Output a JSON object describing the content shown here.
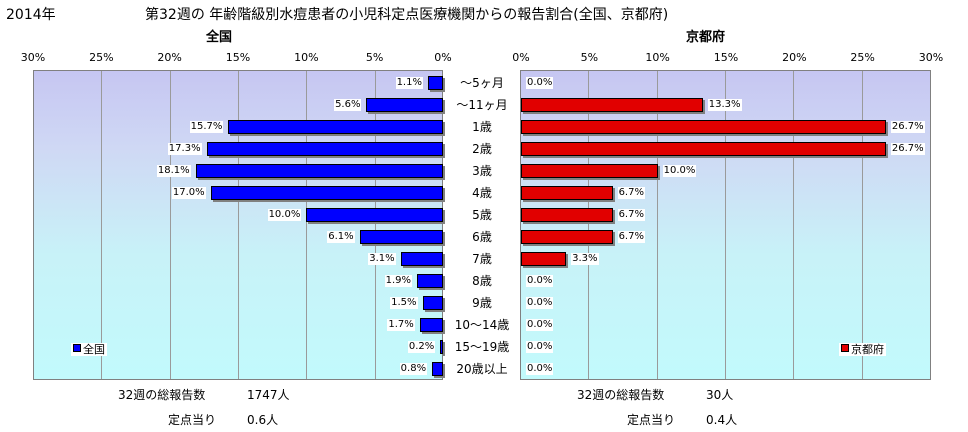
{
  "header": {
    "year": "2014年",
    "title": "第32週の  年齢階級別水痘患者の小児科定点医療機関からの報告割合(全国、京都府)"
  },
  "chart_data": [
    {
      "type": "bar",
      "orientation": "horizontal",
      "direction": "right-to-left",
      "title": "全国",
      "categories": [
        "～5ヶ月",
        "～11ヶ月",
        "1歳",
        "2歳",
        "3歳",
        "4歳",
        "5歳",
        "6歳",
        "7歳",
        "8歳",
        "9歳",
        "10～14歳",
        "15～19歳",
        "20歳以上"
      ],
      "series": [
        {
          "name": "全国",
          "values": [
            1.1,
            5.6,
            15.7,
            17.3,
            18.1,
            17.0,
            10.0,
            6.1,
            3.1,
            1.9,
            1.5,
            1.7,
            0.2,
            0.8
          ],
          "color": "#0000ff"
        }
      ],
      "data_labels": [
        "1.1%",
        "5.6%",
        "15.7%",
        "17.3%",
        "18.1%",
        "17.0%",
        "10.0%",
        "6.1%",
        "3.1%",
        "1.9%",
        "1.5%",
        "1.7%",
        "0.2%",
        "0.8%"
      ],
      "xlim": [
        0,
        30
      ],
      "xticks": [
        "30%",
        "25%",
        "20%",
        "15%",
        "10%",
        "5%",
        "0%"
      ],
      "grid": true,
      "legend_position": "bottom-left"
    },
    {
      "type": "bar",
      "orientation": "horizontal",
      "direction": "left-to-right",
      "title": "京都府",
      "categories": [
        "～5ヶ月",
        "～11ヶ月",
        "1歳",
        "2歳",
        "3歳",
        "4歳",
        "5歳",
        "6歳",
        "7歳",
        "8歳",
        "9歳",
        "10～14歳",
        "15～19歳",
        "20歳以上"
      ],
      "series": [
        {
          "name": "京都府",
          "values": [
            0.0,
            13.3,
            26.7,
            26.7,
            10.0,
            6.7,
            6.7,
            6.7,
            3.3,
            0.0,
            0.0,
            0.0,
            0.0,
            0.0
          ],
          "color": "#e10000"
        }
      ],
      "data_labels": [
        "0.0%",
        "13.3%",
        "26.7%",
        "26.7%",
        "10.0%",
        "6.7%",
        "6.7%",
        "6.7%",
        "3.3%",
        "0.0%",
        "0.0%",
        "0.0%",
        "0.0%",
        "0.0%"
      ],
      "xlim": [
        0,
        30
      ],
      "xticks": [
        "0%",
        "5%",
        "10%",
        "15%",
        "20%",
        "25%",
        "30%"
      ],
      "grid": true,
      "legend_position": "bottom-right"
    }
  ],
  "footer": {
    "left": {
      "total_label": "32週の総報告数",
      "total_value": "1747人",
      "per_label": "定点当り",
      "per_value": "0.6人"
    },
    "right": {
      "total_label": "32週の総報告数",
      "total_value": "30人",
      "per_label": "定点当り",
      "per_value": "0.4人"
    }
  }
}
